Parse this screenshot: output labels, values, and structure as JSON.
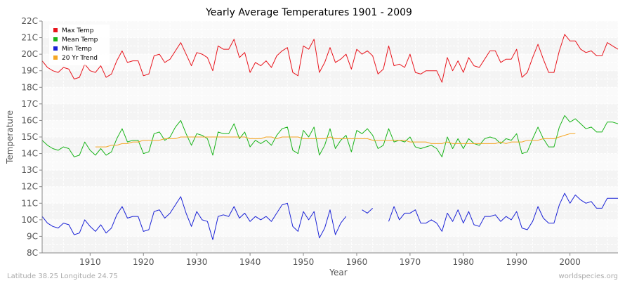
{
  "chart_data": {
    "type": "line",
    "title": "Yearly Average Temperatures 1901 - 2009",
    "xlabel": "Year",
    "ylabel": "Temperature",
    "xlim": [
      1901,
      2009
    ],
    "ylim": [
      8,
      22
    ],
    "x_ticks": [
      1910,
      1920,
      1930,
      1940,
      1950,
      1960,
      1970,
      1980,
      1990,
      2000
    ],
    "y_ticks": [
      8,
      9,
      10,
      11,
      12,
      13,
      14,
      15,
      16,
      17,
      18,
      19,
      20,
      21,
      22
    ],
    "y_unit": "C",
    "grid": true,
    "legend_position": "top-left",
    "footer_left": "Latitude 38.25 Longitude 24.75",
    "footer_right": "worldspecies.org",
    "series": [
      {
        "name": "Max Temp",
        "color": "#e8141c",
        "start_year": 1901,
        "values": [
          19.6,
          19.2,
          19.0,
          18.9,
          19.2,
          19.1,
          18.5,
          18.6,
          19.4,
          19.0,
          18.9,
          19.3,
          18.6,
          18.8,
          19.6,
          20.2,
          19.5,
          19.6,
          19.6,
          18.7,
          18.8,
          19.9,
          20.0,
          19.5,
          19.7,
          20.2,
          20.7,
          20.0,
          19.3,
          20.1,
          20.0,
          19.8,
          19.0,
          20.5,
          20.3,
          20.3,
          20.9,
          19.8,
          20.1,
          18.9,
          19.5,
          19.3,
          19.6,
          19.2,
          19.9,
          20.2,
          20.4,
          18.9,
          18.7,
          20.5,
          20.3,
          20.9,
          18.9,
          19.5,
          20.4,
          19.5,
          19.7,
          20.0,
          19.1,
          20.3,
          20.0,
          20.2,
          19.9,
          18.8,
          19.1,
          20.5,
          19.3,
          19.4,
          19.2,
          20.0,
          18.9,
          18.8,
          19.0,
          19.0,
          19.0,
          18.3,
          19.8,
          19.0,
          19.6,
          18.9,
          19.8,
          19.3,
          19.2,
          19.7,
          20.2,
          20.2,
          19.5,
          19.7,
          19.7,
          20.3,
          18.6,
          18.9,
          19.8,
          20.6,
          19.7,
          18.9,
          18.9,
          20.2,
          21.2,
          20.8,
          20.8,
          20.3,
          20.1,
          20.2,
          19.9,
          19.9,
          20.7,
          20.5,
          20.3
        ]
      },
      {
        "name": "Mean Temp",
        "color": "#1ab41a",
        "start_year": 1901,
        "values": [
          14.8,
          14.5,
          14.3,
          14.2,
          14.4,
          14.3,
          13.8,
          13.9,
          14.7,
          14.2,
          13.9,
          14.3,
          13.9,
          14.1,
          14.9,
          15.5,
          14.7,
          14.8,
          14.8,
          14.0,
          14.1,
          15.2,
          15.3,
          14.8,
          15.0,
          15.6,
          16.0,
          15.2,
          14.5,
          15.2,
          15.1,
          14.9,
          13.9,
          15.3,
          15.2,
          15.2,
          15.8,
          14.9,
          15.3,
          14.4,
          14.8,
          14.6,
          14.8,
          14.5,
          15.1,
          15.5,
          15.6,
          14.2,
          14.0,
          15.4,
          15.0,
          15.6,
          13.9,
          14.5,
          15.5,
          14.3,
          14.8,
          15.1,
          14.1,
          15.4,
          15.2,
          15.5,
          15.1,
          14.3,
          14.5,
          15.5,
          14.7,
          14.8,
          14.7,
          15.0,
          14.4,
          14.3,
          14.4,
          14.5,
          14.3,
          13.8,
          15.0,
          14.3,
          14.9,
          14.3,
          14.9,
          14.6,
          14.5,
          14.9,
          15.0,
          14.9,
          14.6,
          14.9,
          14.8,
          15.2,
          14.0,
          14.1,
          14.9,
          15.6,
          14.9,
          14.4,
          14.4,
          15.6,
          16.3,
          15.9,
          16.1,
          15.8,
          15.5,
          15.6,
          15.3,
          15.3,
          15.9,
          15.9,
          15.8
        ]
      },
      {
        "name": "Min Temp",
        "color": "#1a22d6",
        "start_year": 1901,
        "values": [
          10.2,
          9.8,
          9.6,
          9.5,
          9.8,
          9.7,
          9.1,
          9.2,
          10.0,
          9.6,
          9.3,
          9.7,
          9.2,
          9.5,
          10.3,
          10.8,
          10.1,
          10.2,
          10.2,
          9.3,
          9.4,
          10.5,
          10.6,
          10.1,
          10.4,
          10.9,
          11.4,
          10.4,
          9.6,
          10.5,
          10.0,
          9.9,
          8.8,
          10.2,
          10.3,
          10.2,
          10.8,
          10.1,
          10.4,
          9.9,
          10.2,
          10.0,
          10.2,
          9.9,
          10.4,
          10.9,
          11.0,
          9.6,
          9.3,
          10.5,
          10.0,
          10.5,
          8.9,
          9.5,
          10.6,
          9.1,
          9.8,
          10.2,
          null,
          null,
          10.6,
          10.4,
          10.7,
          null,
          null,
          9.9,
          10.8,
          10.0,
          10.4,
          10.4,
          10.6,
          9.8,
          9.8,
          10.0,
          9.8,
          9.3,
          10.4,
          9.9,
          10.6,
          9.8,
          10.5,
          9.7,
          9.6,
          10.2,
          10.2,
          10.3,
          9.9,
          10.2,
          10.0,
          10.5,
          9.5,
          9.4,
          9.9,
          10.8,
          10.1,
          9.8,
          9.8,
          10.9,
          11.6,
          11.0,
          11.5,
          11.2,
          11.0,
          11.1,
          10.7,
          10.7,
          11.3,
          11.3,
          11.3
        ]
      },
      {
        "name": "20 Yr Trend",
        "color": "#f5a623",
        "start_year": 1911,
        "values": [
          14.4,
          14.4,
          14.4,
          14.5,
          14.5,
          14.6,
          14.6,
          14.7,
          14.7,
          14.8,
          14.8,
          14.8,
          14.8,
          14.9,
          14.9,
          14.9,
          15.0,
          15.0,
          15.0,
          15.0,
          15.0,
          15.0,
          15.0,
          15.0,
          15.0,
          15.0,
          15.0,
          15.0,
          15.0,
          14.9,
          14.9,
          14.9,
          15.0,
          15.0,
          14.9,
          15.0,
          15.0,
          15.0,
          15.0,
          14.9,
          14.9,
          14.9,
          14.9,
          14.9,
          15.0,
          14.9,
          14.9,
          14.9,
          14.9,
          14.9,
          14.9,
          14.9,
          14.8,
          14.8,
          14.8,
          14.8,
          14.8,
          14.8,
          14.8,
          14.7,
          14.7,
          14.7,
          14.7,
          14.6,
          14.6,
          14.6,
          14.7,
          14.6,
          14.6,
          14.6,
          14.6,
          14.6,
          14.6,
          14.6,
          14.6,
          14.6,
          14.7,
          14.6,
          14.7,
          14.7,
          14.7,
          14.8,
          14.8,
          14.8,
          14.9,
          14.9,
          14.9,
          15.0,
          15.1,
          15.2,
          15.2
        ]
      }
    ]
  }
}
